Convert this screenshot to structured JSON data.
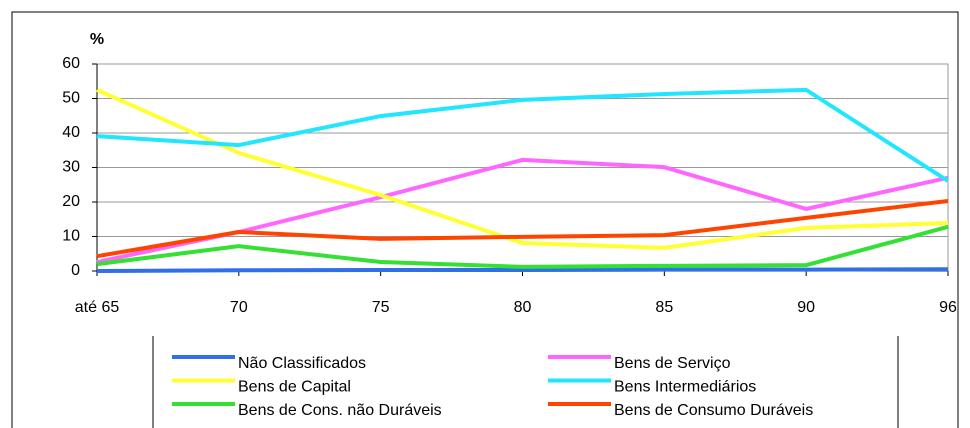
{
  "chart_data": {
    "type": "line",
    "y_label": "%",
    "categories": [
      "até 65",
      "70",
      "75",
      "80",
      "85",
      "90",
      "96"
    ],
    "series": [
      {
        "name": "Não Classificados",
        "color": "#2f6fe8",
        "values": [
          0,
          0.2,
          0.3,
          0.3,
          0.4,
          0.4,
          0.5
        ]
      },
      {
        "name": "Bens de Serviço",
        "color": "#ff66ff",
        "values": [
          2.6,
          11.3,
          21.4,
          32.2,
          30.1,
          18,
          27
        ]
      },
      {
        "name": "Bens de Capital",
        "color": "#ffff33",
        "values": [
          52.5,
          34.2,
          22,
          8.1,
          6.7,
          12.5,
          13.9
        ]
      },
      {
        "name": "Bens Intermediários",
        "color": "#22e5ff",
        "values": [
          39.1,
          36.5,
          44.9,
          49.6,
          51.3,
          52.5,
          26.1
        ]
      },
      {
        "name": "Bens de Cons. não Duráveis",
        "color": "#33e033",
        "values": [
          2,
          7.2,
          2.6,
          1.2,
          1.5,
          1.7,
          12.8
        ]
      },
      {
        "name": "Bens de Consumo Duráveis",
        "color": "#ff4400",
        "values": [
          4.3,
          11.3,
          9.3,
          9.9,
          10.4,
          15.4,
          20.3
        ]
      }
    ],
    "ylim": [
      0,
      60
    ],
    "yticks": [
      0,
      10,
      20,
      30,
      40,
      50,
      60
    ],
    "grid": true
  }
}
